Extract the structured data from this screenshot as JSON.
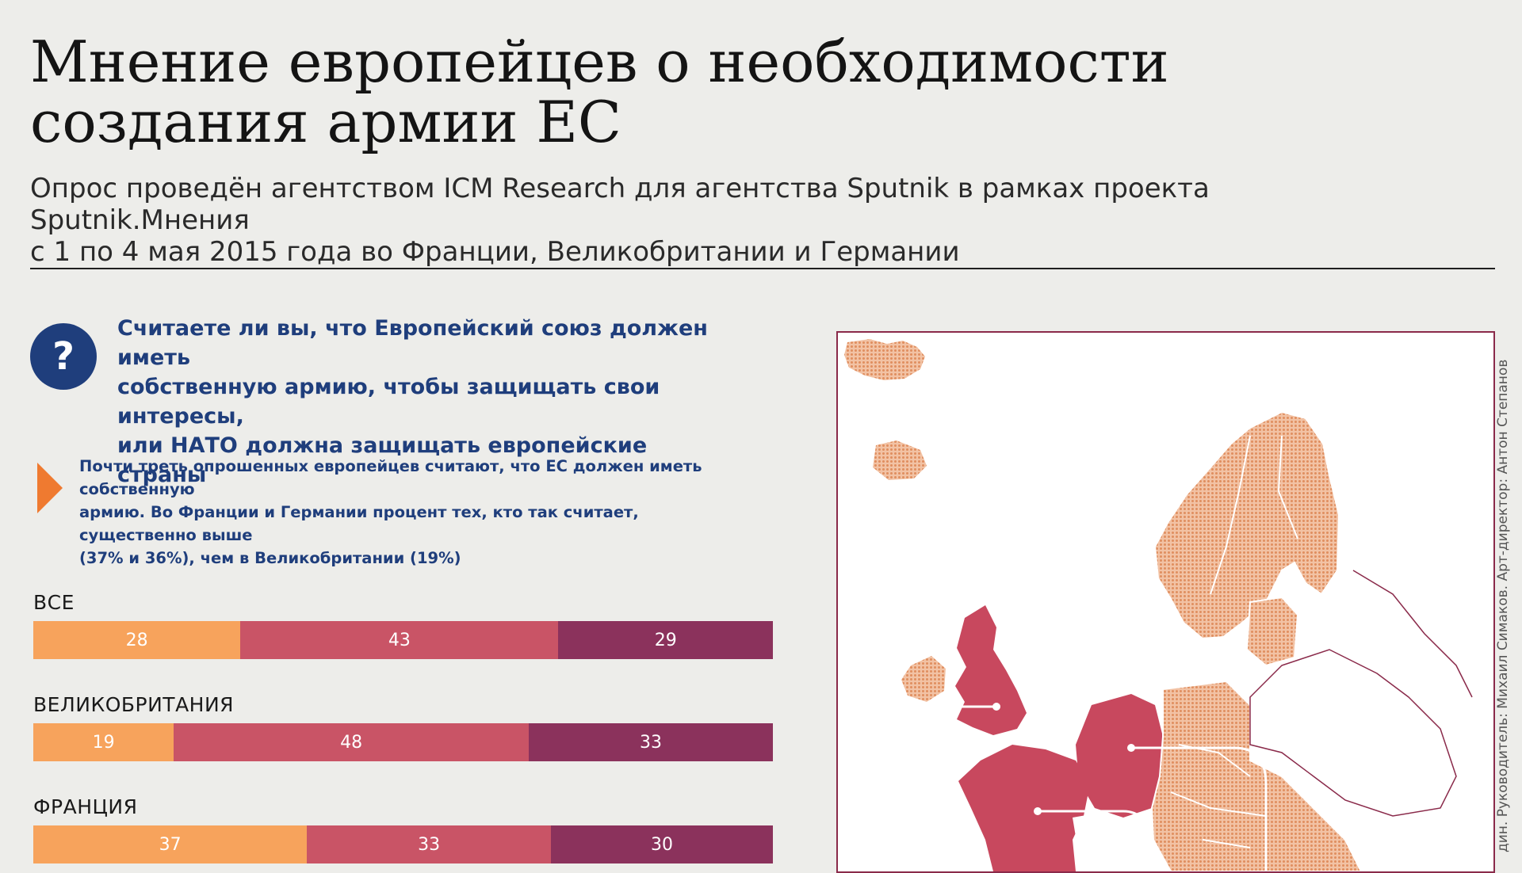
{
  "title_lines": [
    "Мнение европейцев о необходимости",
    "создания армии ЕС"
  ],
  "subtitle_lines": [
    "Опрос проведён агентством ICM Research для агентства Sputnik в рамках проекта Sputnik.Мнения",
    "с 1 по 4 мая 2015 года во Франции, Великобритании и Германии"
  ],
  "question_icon": "?",
  "question_lines": [
    "Считаете ли вы, что Европейский союз должен иметь",
    "собственную армию, чтобы защищать свои интересы,",
    "или НАТО должна защищать европейские страны"
  ],
  "note_lines": [
    "Почти треть опрошенных европейцев считают, что ЕС должен иметь собственную",
    "армию. Во Франции и Германии процент тех, кто так считает, существенно выше",
    "(37% и 36%), чем в Великобритании (19%)"
  ],
  "credit": "дин. Руководитель: Михаил Симаков. Арт-директор: Антон Степанов",
  "colors": {
    "seg1": "#f7a35c",
    "seg2": "#c95466",
    "seg3": "#8b325c",
    "map_highlight": "#c8485e",
    "map_land": "#e8a07a",
    "accent_blue": "#1f3e7c",
    "arrow": "#ef7a30"
  },
  "chart_data": {
    "type": "bar",
    "orientation": "horizontal-stacked",
    "categories": [
      "ВСЕ",
      "ВЕЛИКОБРИТАНИЯ",
      "ФРАНЦИЯ"
    ],
    "series": [
      {
        "values": [
          28,
          19,
          37
        ]
      },
      {
        "values": [
          43,
          48,
          33
        ]
      },
      {
        "values": [
          29,
          33,
          30
        ]
      }
    ],
    "xlim": [
      0,
      100
    ]
  }
}
